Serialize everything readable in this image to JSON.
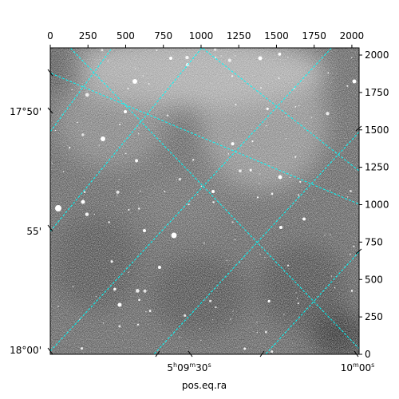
{
  "chart_data": {
    "type": "heatmap",
    "title": "",
    "xlabel": "pos.eq.ra",
    "ylabel": "",
    "pixel_axis": {
      "x_range": [
        0,
        2048
      ],
      "y_range": [
        0,
        2048
      ],
      "x_ticks": [
        0,
        250,
        500,
        750,
        1000,
        1250,
        1500,
        1750,
        2000
      ],
      "y_ticks": [
        0,
        250,
        500,
        750,
        1000,
        1250,
        1500,
        1750,
        2000
      ],
      "x_tick_labels": [
        "0",
        "250",
        "500",
        "750",
        "1000",
        "1250",
        "1500",
        "1750",
        "2000"
      ],
      "y_tick_labels": [
        "0",
        "250",
        "500",
        "750",
        "1000",
        "1250",
        "1500",
        "1750",
        "2000"
      ]
    },
    "world_axis": {
      "ra_tick_labels": [
        {
          "h": "5",
          "hs": "h",
          "m": "09",
          "ms": "m",
          "s": "30",
          "ss": "s"
        },
        {
          "h": "",
          "hs": "",
          "m": "10",
          "ms": "m",
          "s": "00",
          "ss": "s"
        }
      ],
      "dec_tick_labels": [
        "17°50'",
        "55'",
        "18°00'"
      ]
    },
    "grid": true,
    "grid_color": "#00ffff",
    "colormap": "gray",
    "background_level": 0.42
  }
}
